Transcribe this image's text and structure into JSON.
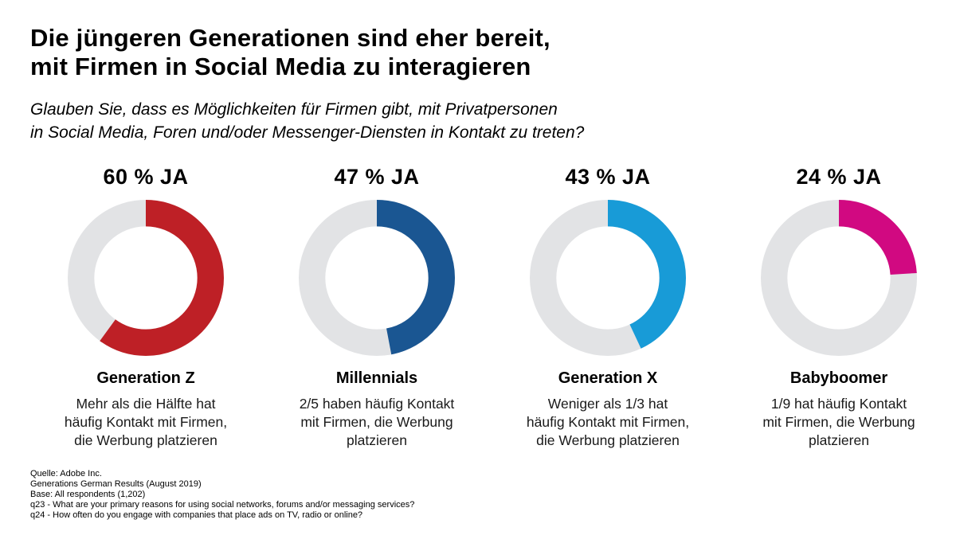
{
  "page": {
    "title": "Die jüngeren Generationen sind eher bereit,\nmit Firmen in Social Media zu interagieren",
    "subtitle": "Glauben Sie, dass es Möglichkeiten für Firmen gibt, mit Privatpersonen\nin Social Media, Foren und/oder Messenger-Diensten in Kontakt zu treten?"
  },
  "chart_data": {
    "type": "pie",
    "variant": "donut",
    "unit": "%",
    "start_angle": "top",
    "direction": "clockwise",
    "track_color": "#E2E3E5",
    "series": [
      {
        "label": "Generation Z",
        "value": 60,
        "percent_label": "60 % JA",
        "color": "#BE2026",
        "description": "Mehr als die Hälfte hat\nhäufig Kontakt mit Firmen,\ndie Werbung platzieren"
      },
      {
        "label": "Millennials",
        "value": 47,
        "percent_label": "47 % JA",
        "color": "#1A5692",
        "description": "2/5 haben häufig Kontakt\nmit Firmen, die Werbung\nplatzieren"
      },
      {
        "label": "Generation X",
        "value": 43,
        "percent_label": "43 % JA",
        "color": "#189BD7",
        "description": "Weniger als 1/3 hat\nhäufig Kontakt mit Firmen,\ndie Werbung platzieren"
      },
      {
        "label": "Babyboomer",
        "value": 24,
        "percent_label": "24 % JA",
        "color": "#D10981",
        "description": "1/9 hat häufig Kontakt\nmit Firmen, die Werbung\nplatzieren"
      }
    ]
  },
  "footer": {
    "lines": [
      "Quelle: Adobe Inc.",
      "Generations German Results (August 2019)",
      "Base: All respondents (1,202)",
      "q23 - What are your primary reasons for using social networks, forums and/or messaging services?",
      "q24 - How often do you engage with companies that place ads on TV, radio or online?"
    ]
  }
}
